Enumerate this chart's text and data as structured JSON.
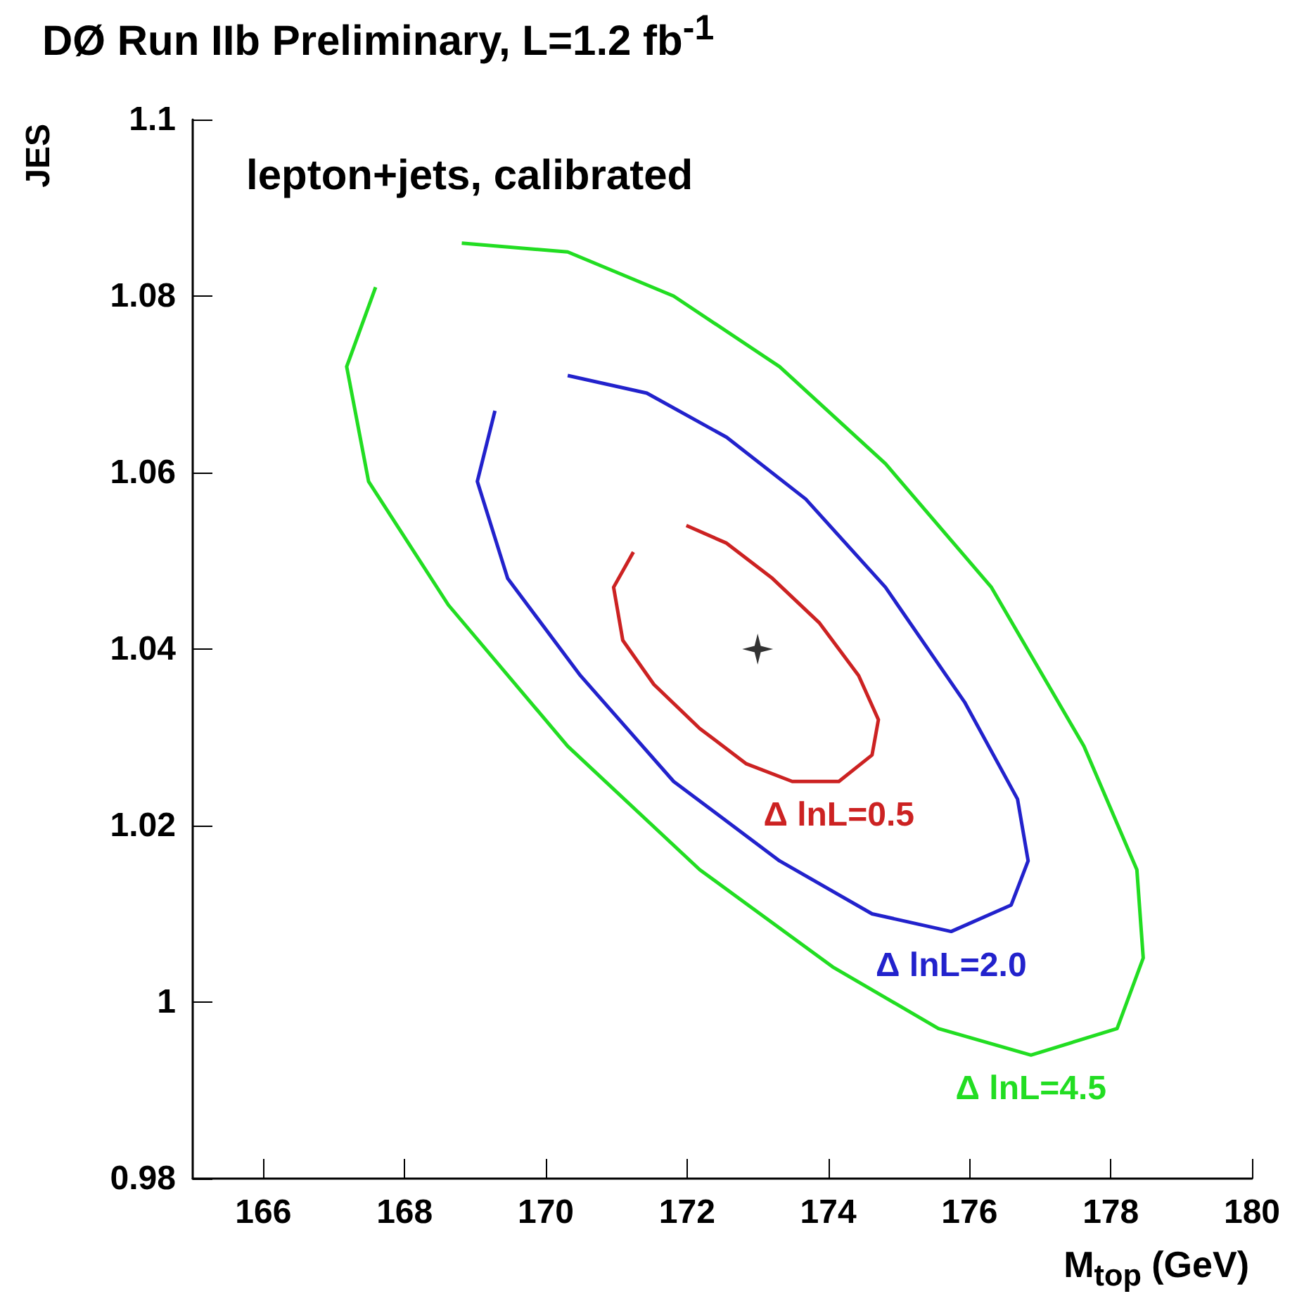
{
  "chart_data": {
    "type": "line",
    "title": "DØ Run IIb Preliminary, L=1.2 fb$^{-1}$",
    "xlabel": "M$_{top}$ (GeV)",
    "ylabel": "JES",
    "annotations": [
      "lepton+jets, calibrated"
    ],
    "xlim": [
      165,
      180
    ],
    "xticks": [
      166,
      168,
      170,
      172,
      174,
      176,
      178,
      180
    ],
    "ylim": [
      0.98,
      1.1
    ],
    "yticks": [
      0.98,
      1,
      1.02,
      1.04,
      1.06,
      1.08,
      1.1
    ],
    "grid": false,
    "legend": false,
    "marker": "none",
    "line_style": "solid",
    "series": [
      {
        "name": "Δ lnL=0.5",
        "color": "#cc2222",
        "x": [
          171.99,
          172.56,
          173.21,
          173.87,
          174.43,
          174.71,
          174.62,
          174.15,
          173.49,
          172.84,
          172.18,
          171.53,
          171.09,
          170.96,
          171.24
        ],
        "values": [
          1.054,
          1.052,
          1.048,
          1.043,
          1.037,
          1.032,
          1.028,
          1.025,
          1.025,
          1.027,
          1.031,
          1.036,
          1.041,
          1.047,
          1.051
        ]
      },
      {
        "name": "Δ lnL=2.0",
        "color": "#2222cc",
        "x": [
          170.31,
          171.43,
          172.56,
          173.68,
          174.81,
          175.93,
          176.68,
          176.83,
          176.59,
          175.74,
          174.62,
          173.31,
          171.81,
          170.49,
          169.46,
          169.03,
          169.28
        ],
        "values": [
          1.071,
          1.069,
          1.064,
          1.057,
          1.047,
          1.034,
          1.023,
          1.016,
          1.011,
          1.008,
          1.01,
          1.016,
          1.025,
          1.037,
          1.048,
          1.059,
          1.067
        ]
      },
      {
        "name": "Δ lnL=4.5",
        "color": "#22dd22",
        "x": [
          168.81,
          170.31,
          171.81,
          173.31,
          174.81,
          176.31,
          177.62,
          178.37,
          178.46,
          178.09,
          176.87,
          175.56,
          174.06,
          172.18,
          170.31,
          168.62,
          167.49,
          167.18,
          167.59
        ],
        "values": [
          1.086,
          1.085,
          1.08,
          1.072,
          1.061,
          1.047,
          1.029,
          1.015,
          1.005,
          0.997,
          0.994,
          0.997,
          1.004,
          1.015,
          1.029,
          1.045,
          1.059,
          1.072,
          1.081
        ]
      },
      {
        "type": "scatter",
        "marker": "star",
        "color": "#000000",
        "x": [
          173
        ],
        "values": [
          1.04
        ]
      }
    ]
  }
}
